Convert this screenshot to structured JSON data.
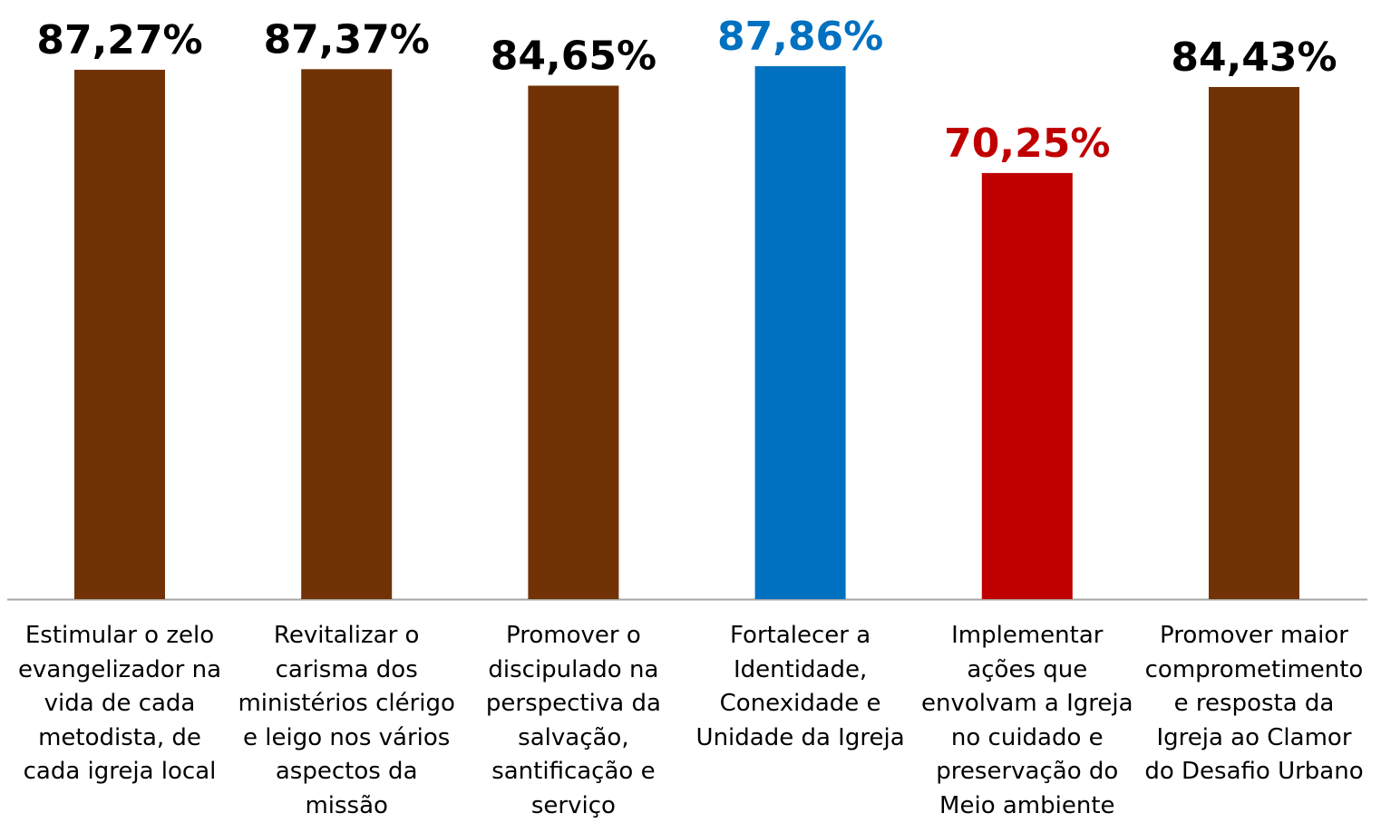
{
  "chart_data": {
    "type": "bar",
    "categories": [
      "Estimular o zelo evangelizador na vida de cada metodista, de cada igreja local",
      "Revitalizar o carisma dos ministérios clérigo e leigo nos vários aspectos da missão",
      "Promover o discipulado na perspectiva da salvação, santificação e serviço",
      "Fortalecer a Identidade, Conexidade e Unidade da Igreja",
      "Implementar ações que envolvam a Igreja no cuidado e preservação do Meio ambiente",
      "Promover maior comprometimento e resposta da Igreja ao Clamor do Desafio Urbano"
    ],
    "values": [
      87.27,
      87.37,
      84.65,
      87.86,
      70.25,
      84.43
    ],
    "value_labels": [
      "87,27%",
      "87,37%",
      "84,65%",
      "87,86%",
      "70,25%",
      "84,43%"
    ],
    "colors": [
      "#713306",
      "#713306",
      "#713306",
      "#0070c0",
      "#c00000",
      "#713306"
    ],
    "value_label_colors": [
      "#000000",
      "#000000",
      "#000000",
      "#0070c0",
      "#c00000",
      "#000000"
    ]
  }
}
